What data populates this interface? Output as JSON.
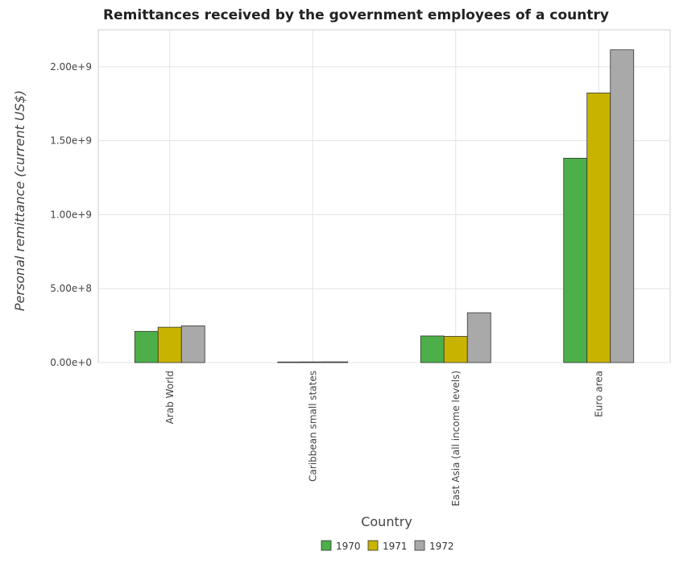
{
  "chart_data": {
    "type": "bar",
    "title": "Remittances received by the government employees of a country",
    "xlabel": "Country",
    "ylabel": "Personal remittance (current US$)",
    "categories": [
      "Arab World",
      "Caribbean small states",
      "East Asia (all income levels)",
      "Euro area"
    ],
    "series": [
      {
        "name": "1970",
        "color": "#4daf4a",
        "values": [
          211000000,
          4000000,
          180000000,
          1382000000
        ]
      },
      {
        "name": "1971",
        "color": "#c8b400",
        "values": [
          239000000,
          4500000,
          177000000,
          1823000000
        ]
      },
      {
        "name": "1972",
        "color": "#a9a9a9",
        "values": [
          248000000,
          5000000,
          337000000,
          2115000000
        ]
      }
    ],
    "ylim": [
      0,
      2250000000
    ],
    "yticks": [
      0,
      500000000,
      1000000000,
      1500000000,
      2000000000
    ],
    "ytick_labels": [
      "0.00e+0",
      "5.00e+8",
      "1.00e+9",
      "1.50e+9",
      "2.00e+9"
    ],
    "grid": true,
    "legend_position": "bottom-center"
  }
}
